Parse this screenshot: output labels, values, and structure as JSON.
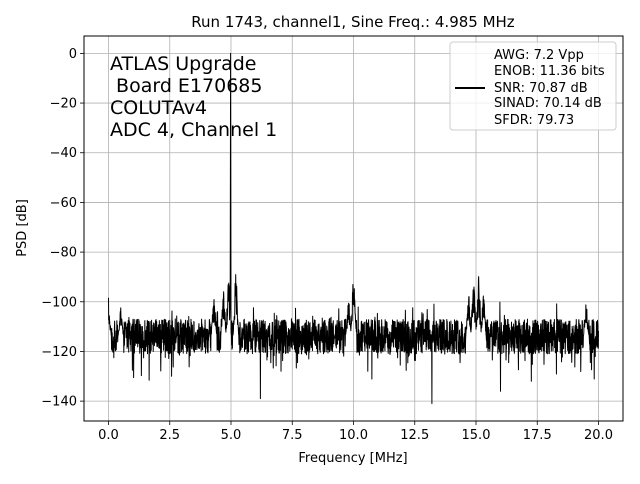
{
  "chart_data": {
    "type": "line",
    "title": "Run 1743, channel1, Sine Freq.: 4.985 MHz",
    "xlabel": "Frequency [MHz]",
    "ylabel": "PSD [dB]",
    "xlim": [
      -1.0,
      21.0
    ],
    "ylim": [
      -148,
      7
    ],
    "xticks": [
      0.0,
      2.5,
      5.0,
      7.5,
      10.0,
      12.5,
      15.0,
      17.5,
      20.0
    ],
    "xtick_labels": [
      "0.0",
      "2.5",
      "5.0",
      "7.5",
      "10.0",
      "12.5",
      "15.0",
      "17.5",
      "20.0"
    ],
    "yticks": [
      0,
      -20,
      -40,
      -60,
      -80,
      -100,
      -120,
      -140
    ],
    "ytick_labels": [
      "0",
      "−20",
      "−40",
      "−60",
      "−80",
      "−100",
      "−120",
      "−140"
    ],
    "grid": true,
    "series_color": "#000000",
    "noise_floor_db": -114,
    "fundamental": {
      "freq_mhz": 4.985,
      "psd_db": 0
    },
    "spurs": [
      {
        "freq_mhz": 0.0,
        "psd_db": -98
      },
      {
        "freq_mhz": 0.5,
        "psd_db": -102
      },
      {
        "freq_mhz": 4.3,
        "psd_db": -97
      },
      {
        "freq_mhz": 4.7,
        "psd_db": -93
      },
      {
        "freq_mhz": 4.9,
        "psd_db": -88
      },
      {
        "freq_mhz": 5.2,
        "psd_db": -84
      },
      {
        "freq_mhz": 10.0,
        "psd_db": -86
      },
      {
        "freq_mhz": 9.8,
        "psd_db": -96
      },
      {
        "freq_mhz": 14.7,
        "psd_db": -95
      },
      {
        "freq_mhz": 14.9,
        "psd_db": -86
      },
      {
        "freq_mhz": 15.1,
        "psd_db": -88
      },
      {
        "freq_mhz": 15.3,
        "psd_db": -92
      },
      {
        "freq_mhz": 19.5,
        "psd_db": -99
      }
    ],
    "min_dips": [
      {
        "freq_mhz": 13.2,
        "psd_db": -141
      },
      {
        "freq_mhz": 6.2,
        "psd_db": -139
      },
      {
        "freq_mhz": 16.0,
        "psd_db": -136
      }
    ],
    "annotation_lines": [
      "ATLAS Upgrade",
      " Board E170685",
      "COLUTAv4",
      "ADC 4, Channel 1"
    ],
    "legend": {
      "position": "upper right",
      "lines": [
        "AWG: 7.2 Vpp",
        "ENOB: 11.36 bits",
        "SNR: 70.87 dB",
        "SINAD: 70.14 dB",
        "SFDR: 79.73"
      ]
    }
  }
}
